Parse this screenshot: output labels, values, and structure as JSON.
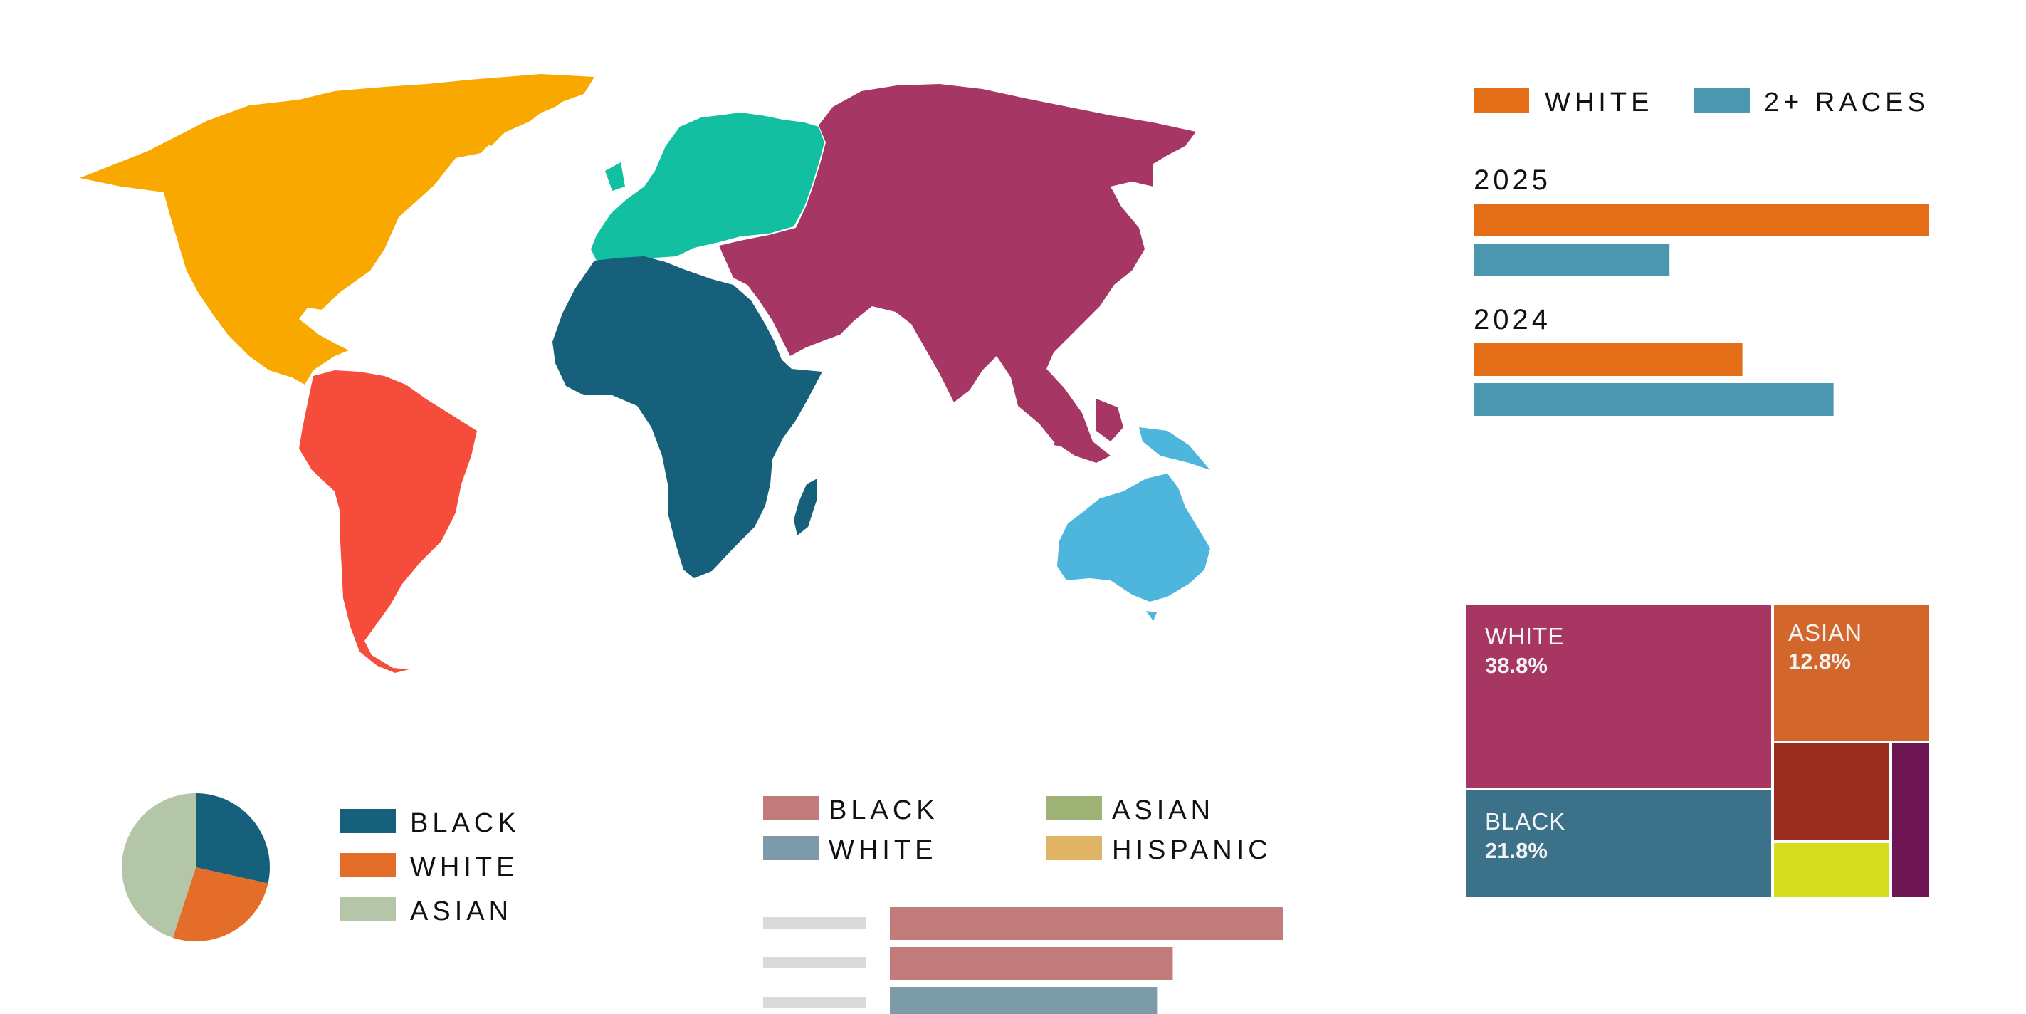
{
  "world_map": {
    "regions": [
      {
        "name": "north-america",
        "color": "#F9A800"
      },
      {
        "name": "south-america",
        "color": "#F64C3B"
      },
      {
        "name": "europe",
        "color": "#12BFA0"
      },
      {
        "name": "africa",
        "color": "#17607B"
      },
      {
        "name": "asia",
        "color": "#A63663"
      },
      {
        "name": "oceania",
        "color": "#4EB5DD"
      }
    ]
  },
  "chart_data": [
    {
      "id": "bars_top_right",
      "type": "bar",
      "orientation": "horizontal",
      "categories": [
        "2025",
        "2024"
      ],
      "series": [
        {
          "name": "WHITE",
          "color": "#E46E17",
          "values": [
            100,
            59
          ]
        },
        {
          "name": "2+ RACES",
          "color": "#4B97B0",
          "values": [
            43,
            79
          ]
        }
      ],
      "xlim": [
        0,
        100
      ]
    },
    {
      "id": "treemap",
      "type": "treemap",
      "cells": [
        {
          "name": "WHITE",
          "label": "38.8%",
          "color": "#A83663"
        },
        {
          "name": "ASIAN",
          "label": "12.8%",
          "color": "#D3662A"
        },
        {
          "name": "BLACK",
          "label": "21.8%",
          "color": "#3C7289"
        },
        {
          "name": "",
          "label": "",
          "color": "#9B2C20"
        },
        {
          "name": "",
          "label": "",
          "color": "#D4DD20"
        },
        {
          "name": "",
          "label": "",
          "color": "#6E1553"
        }
      ]
    },
    {
      "id": "pie",
      "type": "pie",
      "slices": [
        {
          "name": "BLACK",
          "color": "#17607B",
          "value": 0.285
        },
        {
          "name": "WHITE",
          "color": "#E46E29",
          "value": 0.265
        },
        {
          "name": "ASIAN",
          "color": "#B3C7A8",
          "value": 0.45
        }
      ]
    },
    {
      "id": "bars_bottom",
      "type": "bar",
      "orientation": "horizontal",
      "legend": [
        {
          "name": "BLACK",
          "color": "#C17B7B"
        },
        {
          "name": "ASIAN",
          "color": "#9EB275"
        },
        {
          "name": "WHITE",
          "color": "#7A9BA7"
        },
        {
          "name": "HISPANIC",
          "color": "#DFB465"
        }
      ],
      "bars": [
        {
          "series": "BLACK",
          "value": 100
        },
        {
          "series": "BLACK",
          "value": 72
        },
        {
          "series": "WHITE",
          "value": 68
        }
      ],
      "placeholder_color": "#DADADA"
    }
  ]
}
